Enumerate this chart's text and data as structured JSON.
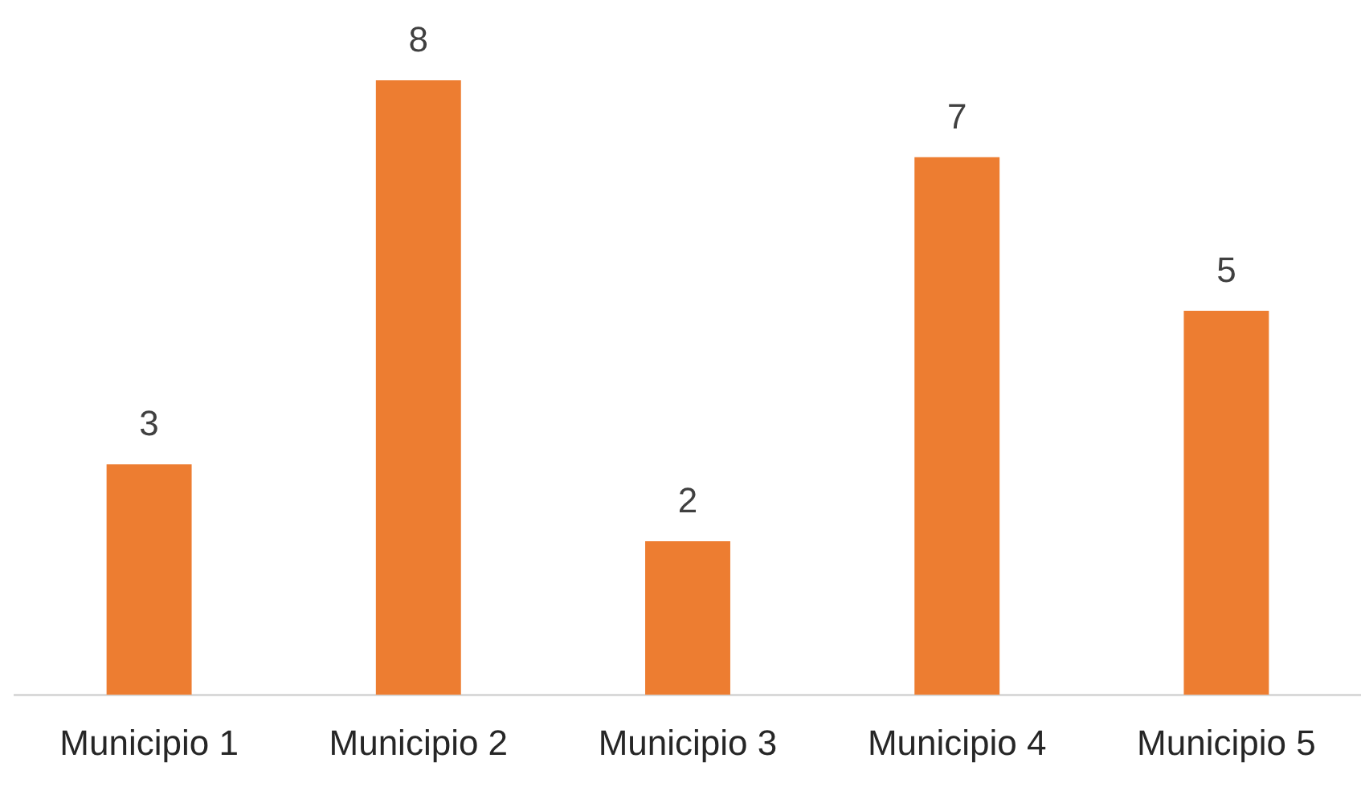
{
  "chart_data": {
    "type": "bar",
    "categories": [
      "Municipio 1",
      "Municipio 2",
      "Municipio 3",
      "Municipio 4",
      "Municipio 5"
    ],
    "values": [
      3,
      8,
      2,
      7,
      5
    ],
    "color": "#ed7d31",
    "tick_labels": "x",
    "data_labels": true
  }
}
